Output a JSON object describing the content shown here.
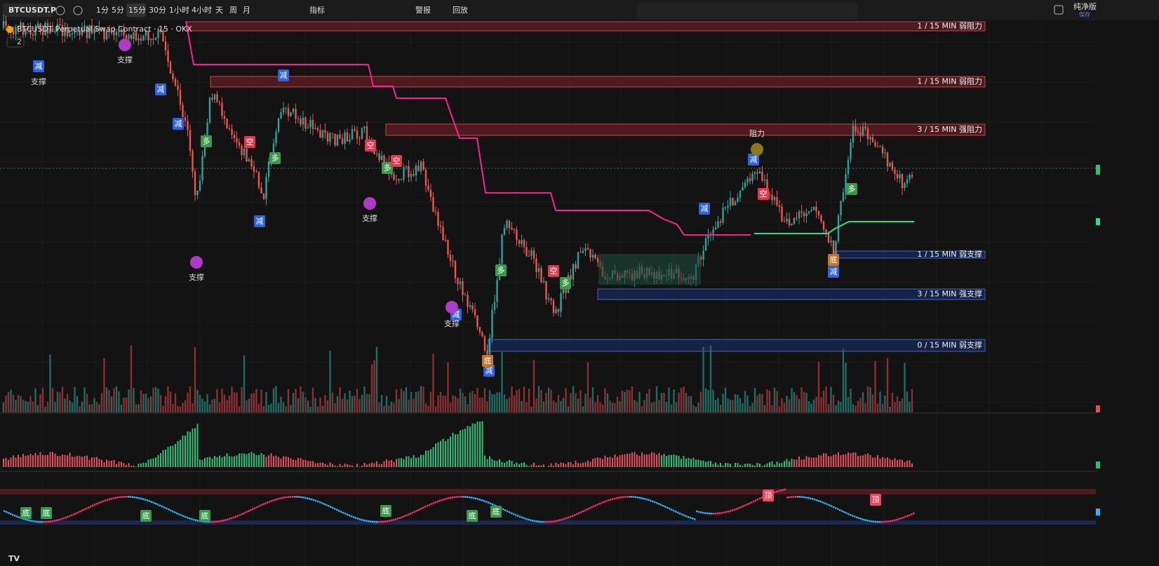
{
  "toolbar": {
    "symbol": "BTCUSDT.P",
    "intervals": [
      "1分",
      "5分",
      "15分",
      "30分",
      "1小时",
      "4小时",
      "天",
      "周",
      "月"
    ],
    "indicators": "指标",
    "alert": "警报",
    "replay": "回放",
    "edition": "纯净版",
    "save": "保存"
  },
  "legend": {
    "title": "BTCUSDT Perpetual Swap Contract · 15 · OKX",
    "count": "2"
  },
  "zones": [
    {
      "label": "1 / 15 MIN 弱阻力",
      "kind": "resistance"
    },
    {
      "label": "1 / 15 MIN 弱阻力",
      "kind": "resistance"
    },
    {
      "label": "3 / 15 MIN 强阻力",
      "kind": "resistance"
    },
    {
      "label": "1 / 15 MIN 弱支撑",
      "kind": "support"
    },
    {
      "label": "3 / 15 MIN 强支撑",
      "kind": "support"
    },
    {
      "label": "0 / 15 MIN 弱支撑",
      "kind": "support"
    }
  ],
  "signals": [
    {
      "label": "减"
    },
    {
      "label": "减"
    },
    {
      "label": "减"
    },
    {
      "label": "减"
    },
    {
      "label": "减"
    },
    {
      "label": "减"
    },
    {
      "label": "减"
    },
    {
      "label": "减"
    },
    {
      "label": "减"
    },
    {
      "label": "减"
    },
    {
      "label": "多"
    },
    {
      "label": "多"
    },
    {
      "label": "多"
    },
    {
      "label": "多"
    },
    {
      "label": "多"
    },
    {
      "label": "多"
    },
    {
      "label": "空"
    },
    {
      "label": "空"
    },
    {
      "label": "空"
    },
    {
      "label": "空"
    },
    {
      "label": "空"
    },
    {
      "label": "底"
    },
    {
      "label": "底"
    }
  ],
  "notes": [
    {
      "label": "支撑"
    },
    {
      "label": "支撑"
    },
    {
      "label": "支撑"
    },
    {
      "label": "支撑"
    },
    {
      "label": "支撑"
    },
    {
      "label": "阻力"
    }
  ],
  "oscillator_signals": [
    {
      "label": "底"
    },
    {
      "label": "底"
    },
    {
      "label": "底"
    },
    {
      "label": "底"
    },
    {
      "label": "底"
    },
    {
      "label": "底"
    },
    {
      "label": "底"
    },
    {
      "label": "顶"
    },
    {
      "label": "顶"
    }
  ]
}
